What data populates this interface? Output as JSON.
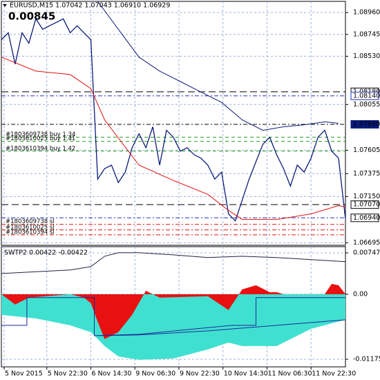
{
  "chart_data": [
    {
      "type": "line",
      "title": "EURUSD,M15 1.07042 1.07043 1.06910 1.06929",
      "annotation": "0.00845",
      "xlim": [
        0,
        50
      ],
      "ylim": [
        1.0667,
        1.0907
      ],
      "yticks": [
        {
          "value": 1.0896,
          "label": "1.08960"
        },
        {
          "value": 1.08745,
          "label": "1.08745"
        },
        {
          "value": 1.0853,
          "label": "1.08530"
        },
        {
          "value": 1.08055,
          "label": "1.08055"
        },
        {
          "value": 1.07605,
          "label": "1.07605"
        },
        {
          "value": 1.07375,
          "label": "1.07375"
        },
        {
          "value": 1.0715,
          "label": "1.07150"
        },
        {
          "value": 1.06695,
          "label": "1.06695"
        }
      ],
      "grid": true,
      "series": [
        {
          "color": "#0a1a7a",
          "x": [
            0,
            1,
            2,
            3,
            4,
            5,
            6,
            7,
            8,
            9,
            10,
            11,
            12,
            13,
            14,
            15,
            16,
            17,
            18,
            19,
            20,
            21,
            22,
            23,
            24,
            25,
            26,
            27,
            28,
            29,
            30,
            31,
            32,
            33,
            34,
            35,
            36,
            37,
            38,
            39,
            40,
            41,
            42,
            43,
            44,
            45,
            46,
            47,
            48,
            49,
            50
          ],
          "values": [
            1.08693,
            1.08761,
            1.08453,
            1.08761,
            1.08658,
            1.08898,
            1.08795,
            1.0883,
            1.08864,
            1.08898,
            1.08761,
            1.0883,
            1.08761,
            1.08693,
            1.07321,
            1.07424,
            1.07459,
            1.07287,
            1.0739,
            1.0763,
            1.07767,
            1.0763,
            1.07836,
            1.07459,
            1.07801,
            1.07733,
            1.07596,
            1.0763,
            1.07561,
            1.07527,
            1.07459,
            1.07321,
            1.0739,
            1.06979,
            1.0691,
            1.07116,
            1.07321,
            1.07493,
            1.07664,
            1.07733,
            1.07561,
            1.07424,
            1.07253,
            1.07459,
            1.0739,
            1.07527,
            1.07733,
            1.07801,
            1.07596,
            1.07527,
            1.06929
          ]
        },
        {
          "color": "#e01010",
          "x": [
            0,
            5,
            10,
            13,
            15,
            20,
            25,
            30,
            33,
            35,
            40,
            45,
            49,
            50
          ],
          "values": [
            1.08521,
            1.08384,
            1.0835,
            1.08213,
            1.07904,
            1.07459,
            1.07308,
            1.07171,
            1.07013,
            1.06924,
            1.06924,
            1.06979,
            1.07061,
            1.07047
          ]
        },
        {
          "color": "#0a1a7a",
          "x": [
            14,
            17,
            20,
            23,
            26,
            29,
            32,
            35,
            38,
            41,
            44,
            47,
            49
          ],
          "values": [
            1.0907,
            1.08795,
            1.08521,
            1.08384,
            1.08281,
            1.08178,
            1.08076,
            1.07904,
            1.07801,
            1.07836,
            1.07856,
            1.07884,
            1.0787
          ]
        }
      ],
      "levels": [
        {
          "value": 1.0818,
          "color": "#000000",
          "dash": "10 5"
        },
        {
          "value": 1.0814,
          "color": "#2030c0",
          "dash": "6 3 2 3"
        },
        {
          "value": 1.0786,
          "color": "#000000",
          "dash": "6 3 2 3"
        },
        {
          "value": 1.07733,
          "color": "#20a020",
          "dash": "5 4"
        },
        {
          "value": 1.07692,
          "color": "#20a020",
          "dash": "5 4"
        },
        {
          "value": 1.07596,
          "color": "#20a020",
          "dash": "5 4"
        },
        {
          "value": 1.0707,
          "color": "#000000",
          "dash": "10 5"
        },
        {
          "value": 1.0694,
          "color": "#2030c0",
          "dash": "6 3 2 3"
        },
        {
          "value": 1.06876,
          "color": "#e01010",
          "dash": "6 3 2 3"
        },
        {
          "value": 1.06821,
          "color": "#e01010",
          "dash": "6 3 2 3"
        },
        {
          "value": 1.06773,
          "color": "#e01010",
          "dash": "6 3 2 3"
        }
      ],
      "price_labels": [
        {
          "value": 1.0818,
          "label": "1.08180",
          "color": "#000000",
          "text_color": "#000000",
          "bg": "#ffffff"
        },
        {
          "value": 1.0814,
          "label": "1.08140",
          "color": "#2030c0",
          "text_color": "#2030c0",
          "bg": "#ffffff"
        },
        {
          "value": 1.0786,
          "label": "1.07860",
          "color": "#0a1a7a",
          "text_color": "#ffffff",
          "bg": "#0a1a7a"
        },
        {
          "value": 1.0707,
          "label": "1.07070",
          "color": "#000000",
          "text_color": "#000000",
          "bg": "#ffffff"
        },
        {
          "value": 1.0694,
          "label": "1.06940",
          "color": "#000000",
          "text_color": "#000000",
          "bg": "#ffffff"
        }
      ],
      "orders": [
        {
          "label": "#1803609738 buy 1.34",
          "value": 1.07733
        },
        {
          "label": "#1803610025 buy 1.41",
          "value": 1.07692
        },
        {
          "label": "#1803610394 buy 1.42",
          "value": 1.07596
        },
        {
          "label": "#1803609738 sl",
          "value": 1.06876
        },
        {
          "label": "#1803610025 sl",
          "value": 1.06821
        },
        {
          "label": "#1803610394 sl",
          "value": 1.06773
        }
      ]
    },
    {
      "type": "area",
      "title": "SWTP2 0.00422 -0.00422",
      "xlim": [
        0,
        50
      ],
      "ylim": [
        -0.01312,
        0.00859
      ],
      "yticks": [
        0.00747,
        {
          "value": 0,
          "label": "0.00"
        },
        -0.01175
      ],
      "xticks": [
        {
          "value": 0.4,
          "label": "5 Nov 2015"
        },
        {
          "value": 6.6,
          "label": "5 Nov 22:30"
        },
        {
          "value": 13,
          "label": "6 Nov 14:30"
        },
        {
          "value": 19.4,
          "label": "9 Nov 06:30"
        },
        {
          "value": 25.8,
          "label": "9 Nov 22:30"
        },
        {
          "value": 32.2,
          "label": "10 Nov 14:30"
        },
        {
          "value": 38.6,
          "label": "11 Nov 06:30"
        },
        {
          "value": 45,
          "label": "11 Nov 22:30"
        }
      ],
      "grid": true,
      "series": [
        {
          "color": "#40e0d0",
          "fill": true,
          "x": [
            0,
            5,
            10,
            13,
            15,
            17,
            20,
            25,
            30,
            33,
            35,
            40,
            45,
            50
          ],
          "values": [
            -0.00374,
            -0.00437,
            -0.00562,
            -0.00686,
            -0.00936,
            -0.01123,
            -0.01186,
            -0.01161,
            -0.00998,
            -0.00874,
            -0.00936,
            -0.00936,
            -0.00624,
            -0.00462
          ]
        },
        {
          "color": "#e81010",
          "fill": true,
          "x": [
            0,
            2,
            4,
            10,
            12,
            13,
            14,
            15,
            17,
            19,
            21,
            23,
            30,
            33,
            35,
            37,
            39,
            40,
            41,
            47,
            48,
            49,
            50
          ],
          "values": [
            0,
            -0.00187,
            -0.00062,
            0,
            -0.00062,
            -0.00162,
            -0.00499,
            -0.00811,
            -0.00686,
            -0.00374,
            0.00062,
            -0.00062,
            -0.00037,
            -0.00287,
            0.00087,
            0.00162,
            0.00037,
            0.00037,
            0,
            0,
            0.00187,
            0.00162,
            0
          ]
        },
        {
          "color": "#1a2a9a",
          "x": [
            0,
            3.7,
            3.7,
            13.5,
            13.5,
            20,
            33.5,
            33.5,
            37,
            37,
            50
          ],
          "values": [
            -0.00562,
            -0.00562,
            -0.00062,
            -0.00062,
            -0.00749,
            -0.00724,
            -0.00562,
            -0.00562,
            -0.00562,
            -0.00062,
            -0.00062
          ]
        },
        {
          "color": "#1a2a9a",
          "x": [
            14,
            20,
            30,
            40,
            50
          ],
          "values": [
            -0.00749,
            -0.00736,
            -0.00662,
            -0.00562,
            -0.00462
          ]
        },
        {
          "color": "#202040",
          "x": [
            0,
            10,
            13,
            15,
            17,
            20,
            25,
            30,
            35,
            40,
            45,
            50
          ],
          "values": [
            0.00374,
            0.00437,
            0.00499,
            0.00686,
            0.00749,
            0.00749,
            0.00711,
            0.00662,
            0.00686,
            0.00662,
            0.00624,
            0.00587
          ]
        }
      ]
    }
  ]
}
